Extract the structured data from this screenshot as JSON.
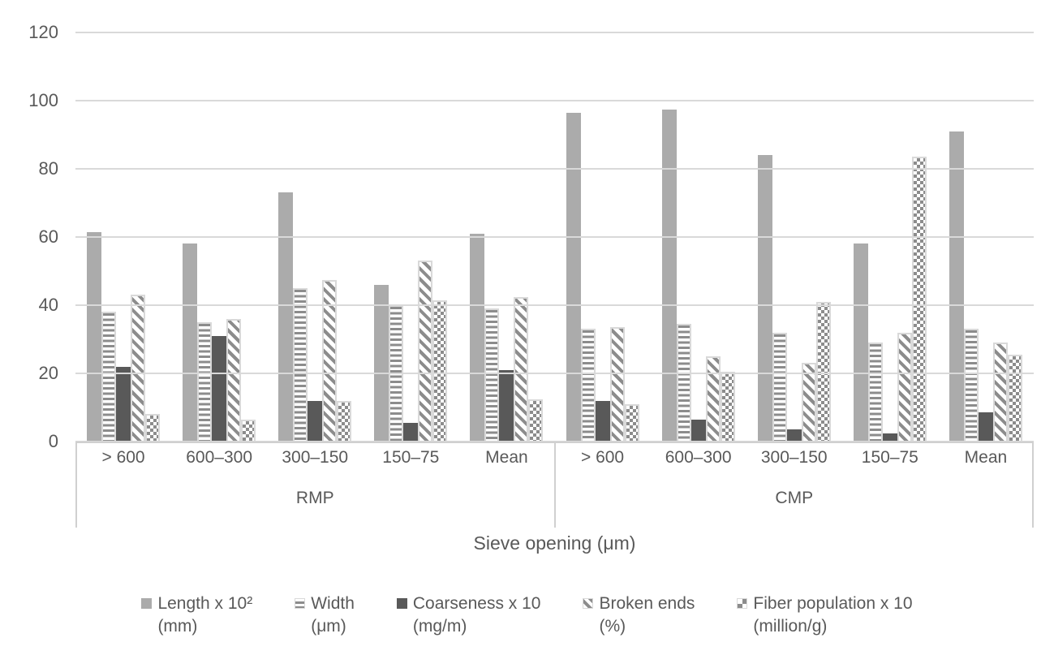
{
  "chart_data": {
    "type": "bar",
    "title": "",
    "xlabel": "Sieve opening (μm)",
    "ylabel": "",
    "ylim": [
      0,
      120
    ],
    "yticks": [
      0,
      20,
      40,
      60,
      80,
      100,
      120
    ],
    "grid": true,
    "legend_position": "bottom",
    "sections": [
      {
        "label": "RMP",
        "categories": [
          "> 600",
          "600–300",
          "300–150",
          "150–75",
          "Mean"
        ]
      },
      {
        "label": "CMP",
        "categories": [
          "> 600",
          "600–300",
          "300–150",
          "150–75",
          "Mean"
        ]
      }
    ],
    "series": [
      {
        "key": "length",
        "name": "Length x 10²",
        "unit": "(mm)",
        "pattern": "solid-light-gray",
        "values": {
          "RMP": [
            61.5,
            58,
            73,
            46,
            61
          ],
          "CMP": [
            96.5,
            97.5,
            84,
            58,
            91
          ]
        }
      },
      {
        "key": "width",
        "name": "Width",
        "unit": "(μm)",
        "pattern": "horizontal-stripes",
        "values": {
          "RMP": [
            38,
            35,
            45,
            40,
            39
          ],
          "CMP": [
            33,
            34.5,
            32,
            29,
            33
          ]
        }
      },
      {
        "key": "coarseness",
        "name": "Coarseness x 10",
        "unit": "(mg/m)",
        "pattern": "solid-dark-gray",
        "values": {
          "RMP": [
            22,
            31,
            12,
            5.5,
            21
          ],
          "CMP": [
            12,
            6.5,
            3.5,
            2.5,
            8.5
          ]
        }
      },
      {
        "key": "broken",
        "name": "Broken ends",
        "unit": "(%)",
        "pattern": "diagonal-stripes",
        "values": {
          "RMP": [
            43,
            36,
            47.5,
            53,
            42.5
          ],
          "CMP": [
            33.5,
            25,
            23,
            32,
            29
          ]
        }
      },
      {
        "key": "fiber",
        "name": "Fiber population x 10",
        "unit": "(million/g)",
        "pattern": "checkerboard",
        "values": {
          "RMP": [
            8,
            6.5,
            12,
            41.5,
            12.5
          ],
          "CMP": [
            11,
            20.5,
            41,
            83.5,
            25.5
          ]
        }
      }
    ],
    "colors": {
      "bar_light_gray": "#ababab",
      "bar_dark_gray": "#595959",
      "pattern_gray": "#8c8c8c",
      "pattern_outline": "#d9d9d9",
      "gridline": "#d9d9d9",
      "axis_line": "#d0d0d0",
      "text": "#595959",
      "background": "#ffffff"
    }
  }
}
